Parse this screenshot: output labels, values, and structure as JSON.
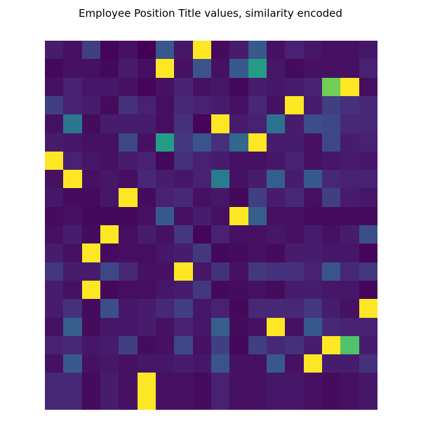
{
  "chart_data": {
    "type": "heatmap",
    "title": "Employee Position Title values, similarity encoded",
    "xlabel": "",
    "ylabel": "",
    "colormap": "viridis",
    "value_range": [
      0,
      1
    ],
    "n_rows": 20,
    "n_cols": 18,
    "axes_visible": false,
    "values": [
      [
        0.1,
        0.06,
        0.2,
        0.02,
        0.06,
        0.0,
        0.27,
        0.08,
        1.0,
        0.04,
        0.1,
        0.28,
        0.06,
        0.12,
        0.08,
        0.06,
        0.06,
        0.08
      ],
      [
        0.03,
        0.06,
        0.06,
        0.03,
        0.1,
        0.05,
        1.0,
        0.06,
        0.25,
        0.06,
        0.28,
        0.55,
        0.08,
        0.04,
        0.06,
        0.06,
        0.06,
        0.12
      ],
      [
        0.06,
        0.12,
        0.08,
        0.08,
        0.06,
        0.02,
        0.06,
        0.12,
        0.06,
        0.08,
        0.03,
        0.1,
        0.08,
        0.1,
        0.12,
        0.78,
        1.0,
        0.05
      ],
      [
        0.2,
        0.12,
        0.1,
        0.04,
        0.16,
        0.12,
        0.05,
        0.14,
        0.12,
        0.1,
        0.06,
        0.14,
        0.06,
        1.0,
        0.1,
        0.2,
        0.16,
        0.14
      ],
      [
        0.06,
        0.4,
        0.04,
        0.1,
        0.1,
        0.1,
        0.05,
        0.16,
        0.02,
        1.0,
        0.1,
        0.12,
        0.38,
        0.1,
        0.24,
        0.22,
        0.14,
        0.14
      ],
      [
        0.1,
        0.08,
        0.06,
        0.06,
        0.22,
        0.06,
        0.55,
        0.18,
        0.26,
        0.16,
        0.34,
        1.0,
        0.1,
        0.1,
        0.06,
        0.22,
        0.1,
        0.12
      ],
      [
        1.0,
        0.12,
        0.08,
        0.06,
        0.1,
        0.12,
        0.03,
        0.16,
        0.12,
        0.1,
        0.06,
        0.06,
        0.08,
        0.12,
        0.06,
        0.08,
        0.1,
        0.08
      ],
      [
        0.06,
        1.0,
        0.06,
        0.08,
        0.05,
        0.14,
        0.1,
        0.08,
        0.12,
        0.42,
        0.06,
        0.1,
        0.3,
        0.1,
        0.28,
        0.14,
        0.12,
        0.12
      ],
      [
        0.08,
        0.04,
        0.04,
        0.08,
        1.0,
        0.04,
        0.12,
        0.14,
        0.06,
        0.08,
        0.03,
        0.2,
        0.1,
        0.14,
        0.06,
        0.2,
        0.1,
        0.08
      ],
      [
        0.04,
        0.06,
        0.03,
        0.03,
        0.03,
        0.06,
        0.28,
        0.06,
        0.1,
        0.06,
        1.0,
        0.3,
        0.06,
        0.06,
        0.04,
        0.04,
        0.04,
        0.04
      ],
      [
        0.06,
        0.1,
        0.04,
        1.0,
        0.05,
        0.1,
        0.06,
        0.18,
        0.02,
        0.12,
        0.06,
        0.06,
        0.08,
        0.06,
        0.1,
        0.06,
        0.1,
        0.24
      ],
      [
        0.1,
        0.06,
        1.0,
        0.04,
        0.05,
        0.05,
        0.08,
        0.1,
        0.18,
        0.03,
        0.04,
        0.06,
        0.04,
        0.1,
        0.1,
        0.08,
        0.08,
        0.02
      ],
      [
        0.18,
        0.1,
        0.1,
        0.22,
        0.14,
        0.06,
        0.06,
        1.0,
        0.08,
        0.16,
        0.06,
        0.18,
        0.16,
        0.16,
        0.12,
        0.26,
        0.14,
        0.18
      ],
      [
        0.1,
        0.06,
        1.0,
        0.03,
        0.05,
        0.05,
        0.08,
        0.1,
        0.18,
        0.03,
        0.04,
        0.06,
        0.04,
        0.1,
        0.1,
        0.08,
        0.08,
        0.02
      ],
      [
        0.1,
        0.16,
        0.04,
        0.24,
        0.08,
        0.1,
        0.14,
        0.2,
        0.08,
        0.12,
        0.03,
        0.14,
        0.14,
        0.14,
        0.18,
        0.1,
        0.06,
        1.0
      ],
      [
        0.06,
        0.3,
        0.04,
        0.08,
        0.08,
        0.1,
        0.06,
        0.12,
        0.08,
        0.3,
        0.04,
        0.06,
        1.0,
        0.06,
        0.28,
        0.14,
        0.12,
        0.12
      ],
      [
        0.12,
        0.14,
        0.08,
        0.1,
        0.2,
        0.04,
        0.06,
        0.22,
        0.06,
        0.2,
        0.03,
        0.2,
        0.14,
        0.16,
        0.1,
        1.0,
        0.72,
        0.1
      ],
      [
        0.06,
        0.28,
        0.06,
        0.08,
        0.06,
        0.08,
        0.08,
        0.1,
        0.08,
        0.26,
        0.06,
        0.06,
        0.28,
        0.06,
        1.0,
        0.1,
        0.1,
        0.16
      ],
      [
        0.14,
        0.14,
        0.04,
        0.1,
        0.06,
        1.0,
        0.06,
        0.06,
        0.04,
        0.12,
        0.06,
        0.06,
        0.08,
        0.08,
        0.06,
        0.04,
        0.06,
        0.08
      ],
      [
        0.14,
        0.14,
        0.04,
        0.1,
        0.06,
        1.0,
        0.06,
        0.06,
        0.04,
        0.12,
        0.06,
        0.06,
        0.08,
        0.08,
        0.06,
        0.04,
        0.06,
        0.08
      ]
    ]
  }
}
